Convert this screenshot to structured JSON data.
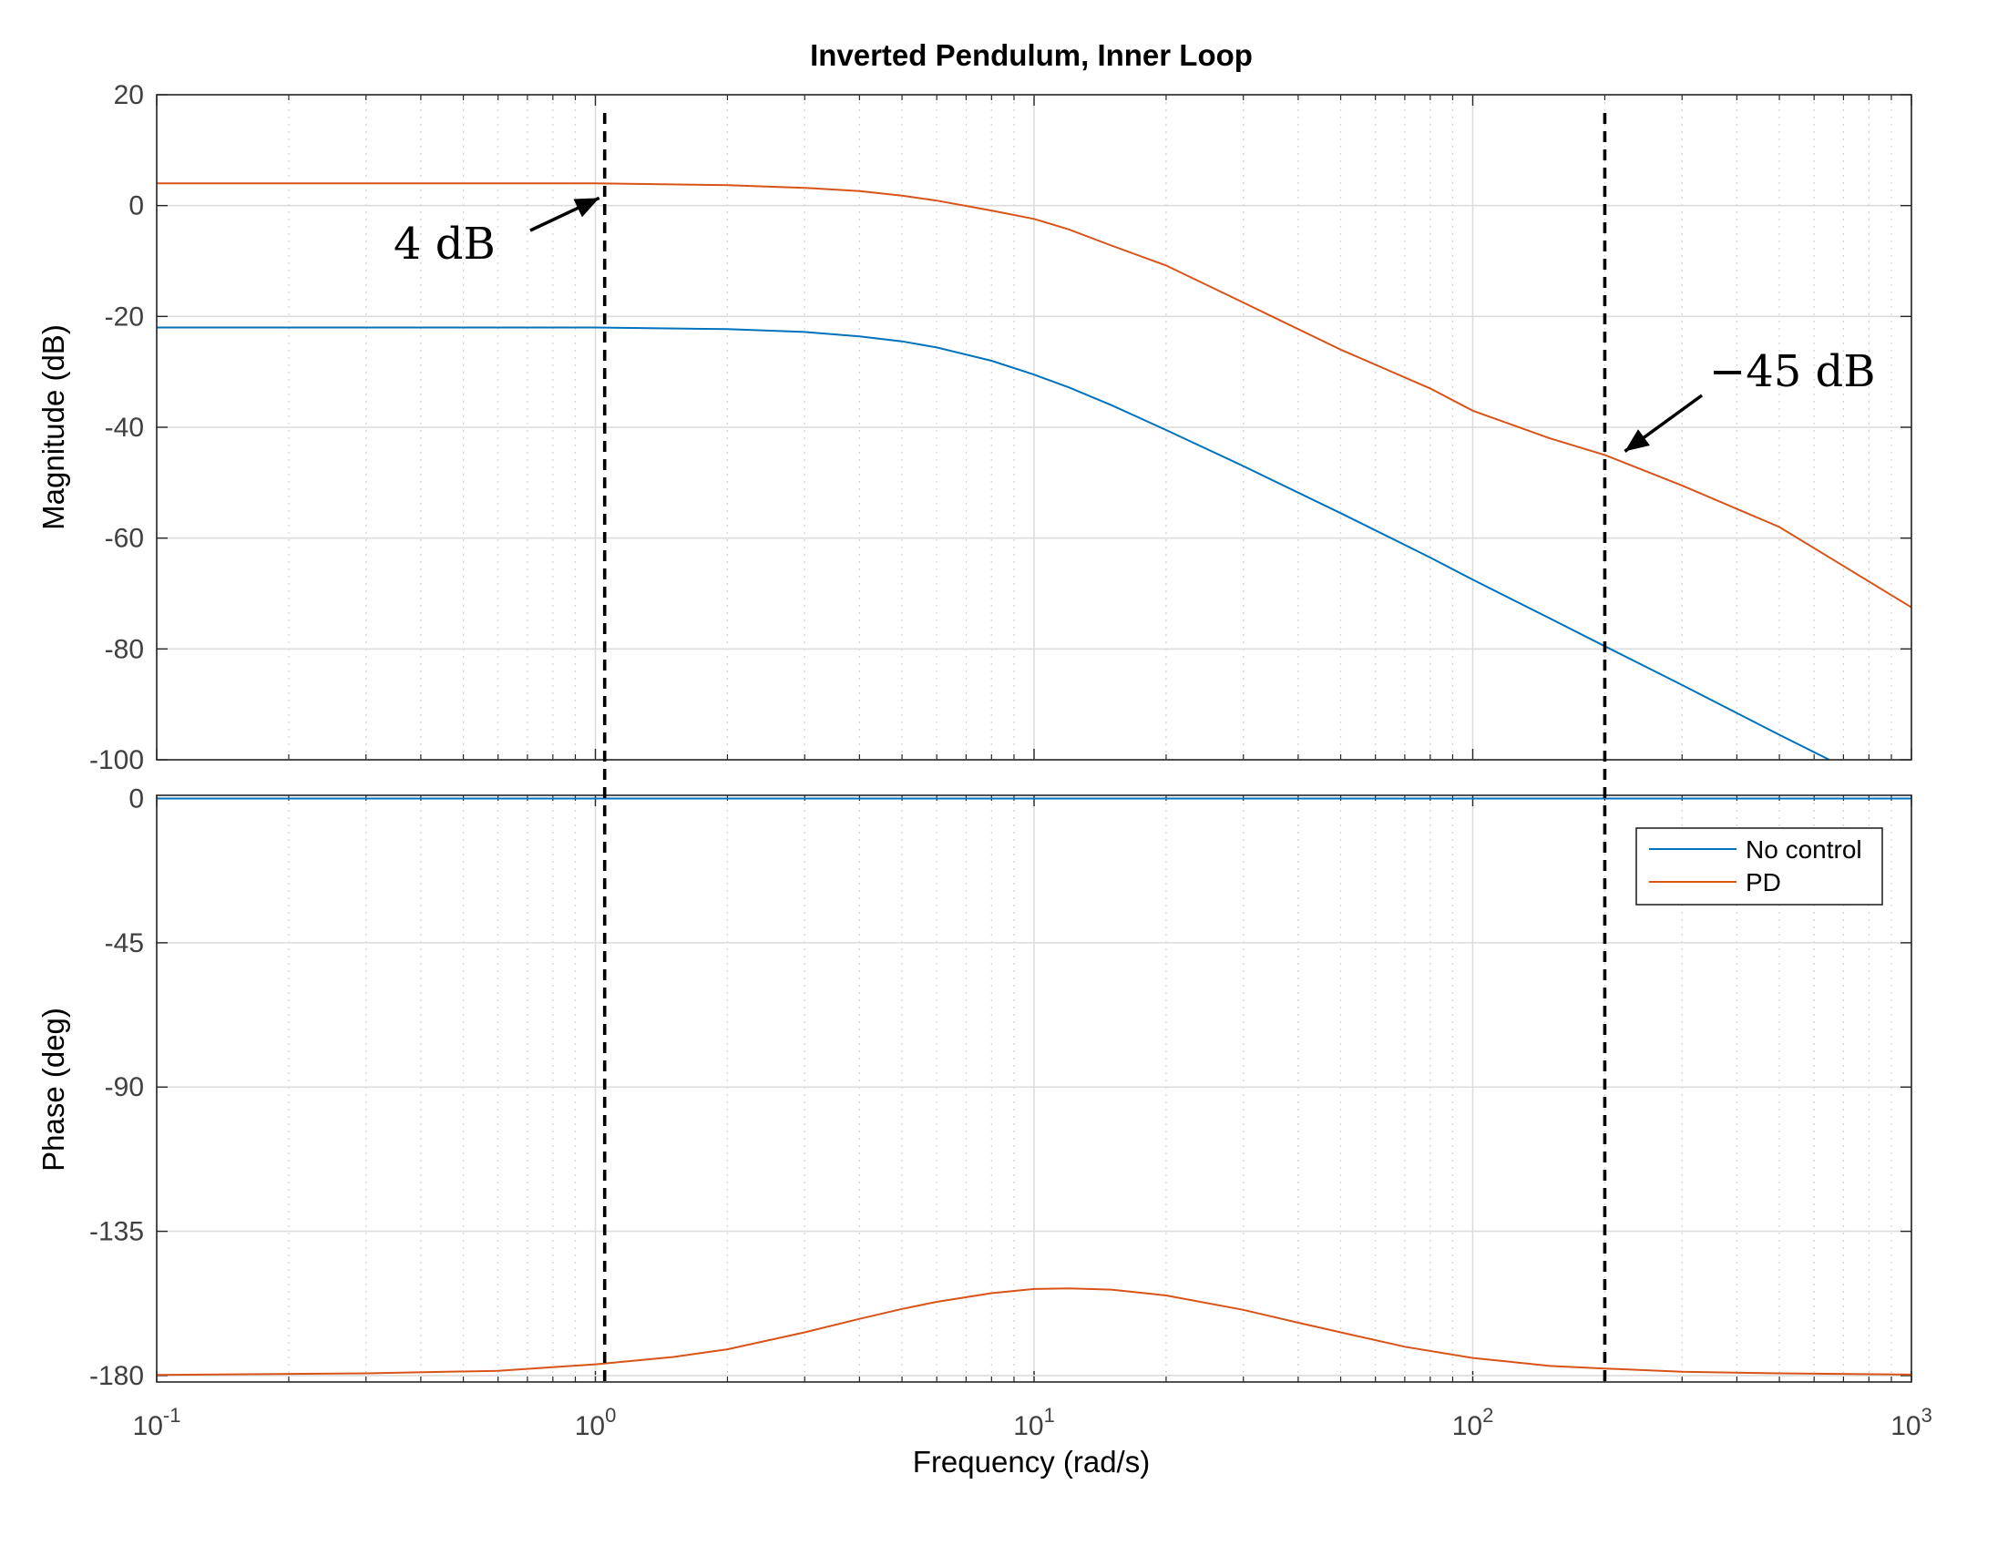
{
  "chart_data": {
    "type": "line",
    "title": "Inverted Pendulum, Inner Loop",
    "xlabel": "Frequency  (rad/s)",
    "x_scale": "log",
    "xlim": [
      0.1,
      1000
    ],
    "x_ticks": [
      {
        "base": "10",
        "exp": "-1"
      },
      {
        "base": "10",
        "exp": "0"
      },
      {
        "base": "10",
        "exp": "1"
      },
      {
        "base": "10",
        "exp": "2"
      },
      {
        "base": "10",
        "exp": "3"
      }
    ],
    "grid": true,
    "legend_position": "top-right of phase plot",
    "colors": {
      "no_control": "#0072bd",
      "pd": "#d95319",
      "marker": "#000000"
    },
    "magnitude": {
      "ylabel": "Magnitude (dB)",
      "ylim": [
        -100,
        20
      ],
      "yticks": [
        "20",
        "0",
        "-20",
        "-40",
        "-60",
        "-80",
        "-100"
      ],
      "ytick_values": [
        20,
        0,
        -20,
        -40,
        -60,
        -80,
        -100
      ]
    },
    "phase": {
      "ylabel": "Phase (deg)",
      "ylim": [
        -182,
        1
      ],
      "yticks": [
        "0",
        "-45",
        "-90",
        "-135",
        "-180"
      ],
      "ytick_values": [
        0,
        -45,
        -90,
        -135,
        -180
      ]
    },
    "series": [
      {
        "name": "No control",
        "color": "#0072bd",
        "magnitude": {
          "x": [
            0.1,
            0.5,
            1,
            2,
            3,
            4,
            5,
            6,
            8,
            10,
            12,
            15,
            20,
            30,
            50,
            80,
            100,
            150,
            200,
            300,
            500,
            650
          ],
          "y": [
            -22,
            -22,
            -22,
            -22.3,
            -22.8,
            -23.6,
            -24.5,
            -25.6,
            -28,
            -30.5,
            -32.8,
            -36,
            -40.5,
            -47,
            -55.5,
            -63.5,
            -67.5,
            -74.5,
            -79.5,
            -86.5,
            -95.5,
            -100
          ]
        },
        "phase": {
          "x": [
            0.1,
            1000
          ],
          "y": [
            0,
            0
          ]
        }
      },
      {
        "name": "PD",
        "color": "#d95319",
        "magnitude": {
          "x": [
            0.1,
            0.5,
            1,
            2,
            3,
            4,
            5,
            6,
            8,
            10,
            12,
            15,
            20,
            30,
            50,
            80,
            100,
            150,
            200,
            300,
            500,
            1000
          ],
          "y": [
            4,
            4,
            4,
            3.7,
            3.2,
            2.6,
            1.8,
            0.9,
            -0.9,
            -2.4,
            -4.3,
            -7.2,
            -10.8,
            -17.5,
            -26,
            -33,
            -37,
            -42,
            -45,
            -50.5,
            -58,
            -72.5
          ]
        },
        "phase": {
          "x": [
            0.1,
            0.3,
            0.6,
            1,
            1.5,
            2,
            3,
            4,
            5,
            6,
            8,
            10,
            12,
            15,
            20,
            30,
            40,
            50,
            70,
            100,
            150,
            200,
            300,
            500,
            1000
          ],
          "y": [
            -179.8,
            -179.3,
            -178.5,
            -176.5,
            -174.2,
            -171.8,
            -166.5,
            -162.3,
            -159.2,
            -157,
            -154.3,
            -153,
            -152.8,
            -153.2,
            -155,
            -159.5,
            -163.5,
            -166.5,
            -171,
            -174.5,
            -177,
            -177.8,
            -178.8,
            -179.3,
            -179.7
          ]
        }
      }
    ],
    "markers": [
      {
        "x": 1.05,
        "style": "dashed vertical line"
      },
      {
        "x": 200,
        "style": "dashed vertical line"
      }
    ],
    "annotations": [
      {
        "text": "4 dB",
        "x": 1.05,
        "y": 4
      },
      {
        "text": "−45 dB",
        "x": 200,
        "y": -45
      }
    ]
  }
}
